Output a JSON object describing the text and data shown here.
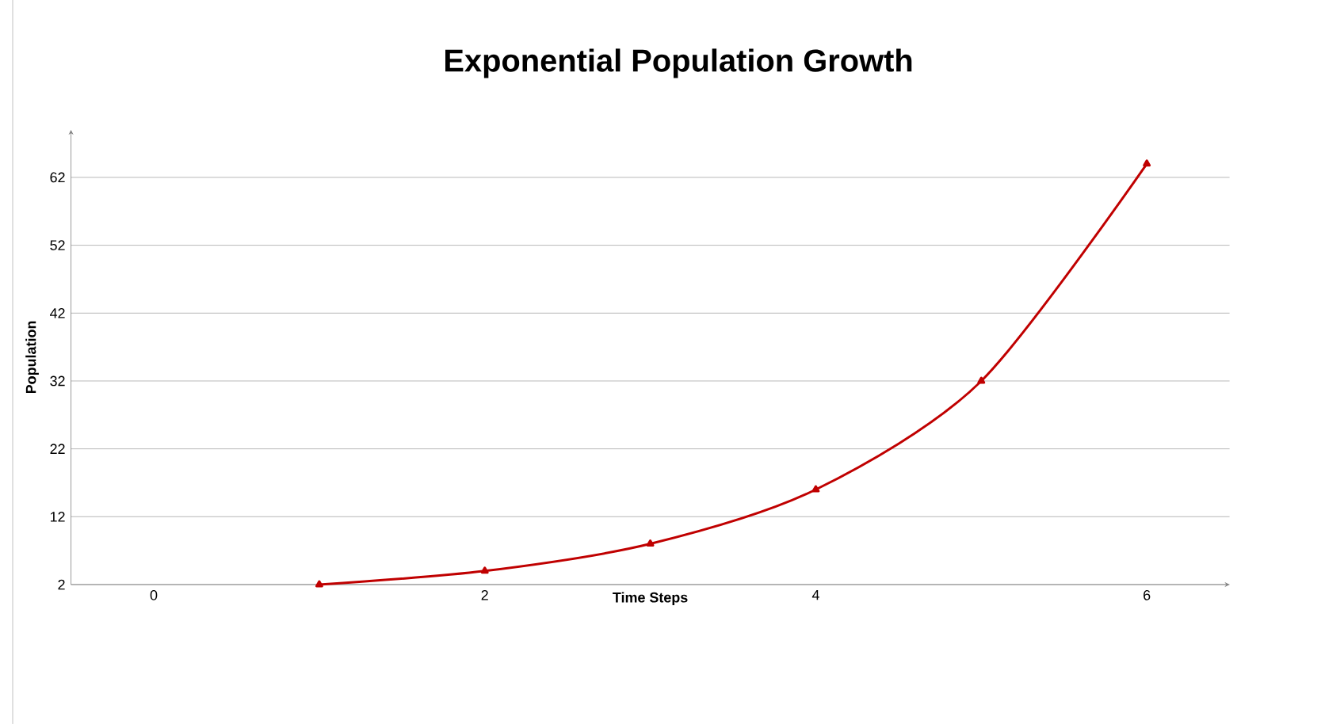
{
  "chart_data": {
    "type": "line",
    "title": "Exponential Population Growth",
    "xlabel": "Time Steps",
    "ylabel": "Population",
    "x": [
      1,
      2,
      3,
      4,
      5,
      6
    ],
    "series": [
      {
        "color": "#c00000",
        "values": [
          2,
          4,
          8,
          16,
          32,
          64
        ]
      }
    ],
    "xlim": [
      -0.5,
      6.5
    ],
    "xticks": [
      0,
      2,
      4,
      6
    ],
    "ylim": [
      2,
      69
    ],
    "yticks": [
      2,
      12,
      22,
      32,
      42,
      52,
      62
    ],
    "grid": "y",
    "marker": "triangle",
    "line_style": "solid"
  }
}
